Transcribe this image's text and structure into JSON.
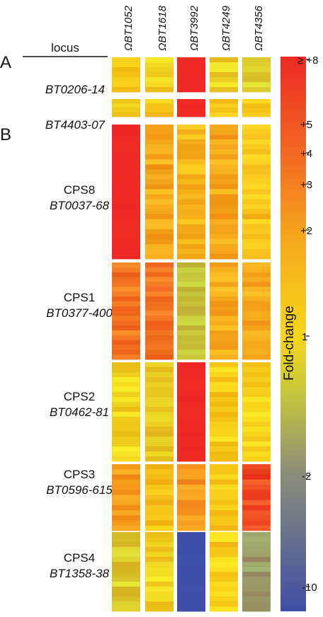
{
  "figure": {
    "panel_labels": [
      "A",
      "B"
    ],
    "locus_header": "locus",
    "strains": [
      "ΩBT1052",
      "ΩBT1618",
      "ΩBT3992",
      "ΩBT4249",
      "ΩBT4356"
    ],
    "groups": [
      {
        "name": "",
        "locus": "BT0206-14"
      },
      {
        "name": "",
        "locus": "BT4403-07"
      },
      {
        "name": "CPS8",
        "locus": "BT0037-68"
      },
      {
        "name": "CPS1",
        "locus": "BT0377-400"
      },
      {
        "name": "CPS2",
        "locus": "BT0462-81"
      },
      {
        "name": "CPS3",
        "locus": "BT0596-615"
      },
      {
        "name": "CPS4",
        "locus": "BT1358-38"
      }
    ],
    "colorbar": {
      "title": "Fold-change",
      "ticks": [
        "≥ +8",
        "+5",
        "+4",
        "+3",
        "+2",
        "1",
        "-2",
        "-10"
      ],
      "colors": [
        "#ee2a24",
        "#f26a22",
        "#f6a81c",
        "#f8d51a",
        "#c9c83a",
        "#8c8e78",
        "#3e4fa6"
      ]
    }
  },
  "chart_data": {
    "type": "heatmap",
    "value_description": "Fold-change (colour-encoded; approximate group-level trend)",
    "columns": [
      "ΩBT1052",
      "ΩBT1618",
      "ΩBT3992",
      "ΩBT4249",
      "ΩBT4356"
    ],
    "colorbar_ticks": [
      "≥ +8",
      "+5",
      "+4",
      "+3",
      "+2",
      "1",
      "-2",
      "-10"
    ],
    "rows": [
      {
        "locus": "BT0206-14",
        "panel": "A",
        "approx_fold_change": [
          1.5,
          1.3,
          8,
          1.2,
          1.0
        ]
      },
      {
        "locus": "BT4403-07",
        "panel": "A",
        "approx_fold_change": [
          1.3,
          1.6,
          8,
          1.7,
          1.5
        ]
      },
      {
        "locus": "CPS8 BT0037-68",
        "panel": "B",
        "approx_fold_change": [
          8,
          2.5,
          2.0,
          2.5,
          1.8
        ]
      },
      {
        "locus": "CPS1 BT0377-400",
        "panel": "B",
        "approx_fold_change": [
          4,
          4,
          -1.5,
          2.5,
          2.5
        ]
      },
      {
        "locus": "CPS2 BT0462-81",
        "panel": "B",
        "approx_fold_change": [
          1.3,
          1.2,
          8,
          1.5,
          1.4
        ]
      },
      {
        "locus": "CPS3 BT0596-615",
        "panel": "B",
        "approx_fold_change": [
          2.8,
          1.7,
          3,
          1.6,
          6
        ]
      },
      {
        "locus": "CPS4 BT1358-38",
        "panel": "B",
        "approx_fold_change": [
          1.0,
          1.3,
          -10,
          1.5,
          -3
        ]
      }
    ]
  }
}
